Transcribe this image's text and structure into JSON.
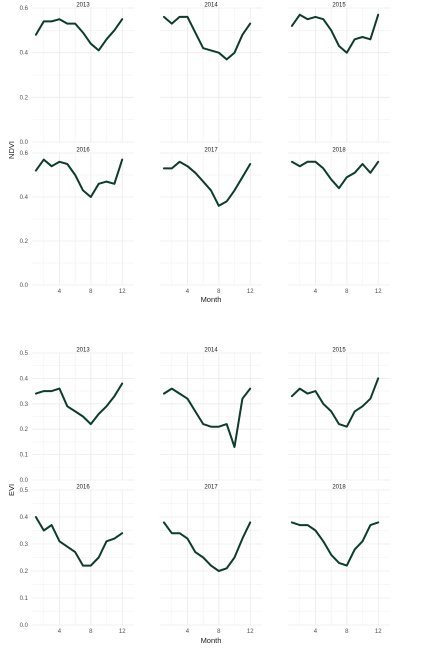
{
  "line_color": "#0b3d2a",
  "grid_color": "#ebebeb",
  "chart_data": [
    {
      "type": "line",
      "ylabel": "NDVI",
      "xlabel": "Month",
      "ylim": [
        0,
        0.6
      ],
      "yticks": [
        "0.0",
        "0.2",
        "0.4",
        "0.6"
      ],
      "xlim": [
        0.5,
        13.5
      ],
      "xticks": [
        "4",
        "8",
        "12"
      ],
      "grid": true,
      "panels": [
        {
          "title": "2013",
          "x": [
            1,
            2,
            3,
            4,
            5,
            6,
            7,
            8,
            9,
            10,
            11,
            12
          ],
          "y": [
            0.48,
            0.54,
            0.54,
            0.55,
            0.53,
            0.53,
            0.49,
            0.44,
            0.41,
            0.46,
            0.5,
            0.55
          ]
        },
        {
          "title": "2014",
          "x": [
            1,
            2,
            3,
            4,
            5,
            6,
            7,
            8,
            9,
            10,
            11,
            12
          ],
          "y": [
            0.56,
            0.53,
            0.56,
            0.56,
            0.49,
            0.42,
            0.41,
            0.4,
            0.37,
            0.4,
            0.48,
            0.53
          ]
        },
        {
          "title": "2015",
          "x": [
            1,
            2,
            3,
            4,
            5,
            6,
            7,
            8,
            9,
            10,
            11,
            12
          ],
          "y": [
            0.52,
            0.57,
            0.55,
            0.56,
            0.55,
            0.5,
            0.43,
            0.4,
            0.46,
            0.47,
            0.46,
            0.57
          ]
        },
        {
          "title": "2016",
          "x": [
            1,
            2,
            3,
            4,
            5,
            6,
            7,
            8,
            9,
            10,
            11,
            12
          ],
          "y": [
            0.52,
            0.57,
            0.54,
            0.56,
            0.55,
            0.5,
            0.43,
            0.4,
            0.46,
            0.47,
            0.46,
            0.57
          ]
        },
        {
          "title": "2017",
          "x": [
            1,
            2,
            3,
            4,
            5,
            6,
            7,
            8,
            9,
            10,
            11,
            12
          ],
          "y": [
            0.53,
            0.53,
            0.56,
            0.54,
            0.51,
            0.47,
            0.43,
            0.36,
            0.38,
            0.43,
            0.49,
            0.55
          ]
        },
        {
          "title": "2018",
          "x": [
            1,
            2,
            3,
            4,
            5,
            6,
            7,
            8,
            9,
            10,
            11,
            12
          ],
          "y": [
            0.56,
            0.54,
            0.56,
            0.56,
            0.53,
            0.48,
            0.44,
            0.49,
            0.51,
            0.55,
            0.51,
            0.56
          ]
        }
      ]
    },
    {
      "type": "line",
      "ylabel": "EVI",
      "xlabel": "Month",
      "ylim": [
        0,
        0.5
      ],
      "yticks": [
        "0.0",
        "0.1",
        "0.2",
        "0.3",
        "0.4",
        "0.5"
      ],
      "xlim": [
        0.5,
        13.5
      ],
      "xticks": [
        "4",
        "8",
        "12"
      ],
      "grid": true,
      "panels": [
        {
          "title": "2013",
          "x": [
            1,
            2,
            3,
            4,
            5,
            6,
            7,
            8,
            9,
            10,
            11,
            12
          ],
          "y": [
            0.34,
            0.35,
            0.35,
            0.36,
            0.29,
            0.27,
            0.25,
            0.22,
            0.26,
            0.29,
            0.33,
            0.38
          ]
        },
        {
          "title": "2014",
          "x": [
            1,
            2,
            3,
            4,
            5,
            6,
            7,
            8,
            9,
            10,
            11,
            12
          ],
          "y": [
            0.34,
            0.36,
            0.34,
            0.32,
            0.27,
            0.22,
            0.21,
            0.21,
            0.22,
            0.13,
            0.32,
            0.36
          ]
        },
        {
          "title": "2015",
          "x": [
            1,
            2,
            3,
            4,
            5,
            6,
            7,
            8,
            9,
            10,
            11,
            12
          ],
          "y": [
            0.33,
            0.36,
            0.34,
            0.35,
            0.3,
            0.27,
            0.22,
            0.21,
            0.27,
            0.29,
            0.32,
            0.4
          ]
        },
        {
          "title": "2016",
          "x": [
            1,
            2,
            3,
            4,
            5,
            6,
            7,
            8,
            9,
            10,
            11,
            12
          ],
          "y": [
            0.4,
            0.35,
            0.37,
            0.31,
            0.29,
            0.27,
            0.22,
            0.22,
            0.25,
            0.31,
            0.32,
            0.34
          ]
        },
        {
          "title": "2017",
          "x": [
            1,
            2,
            3,
            4,
            5,
            6,
            7,
            8,
            9,
            10,
            11,
            12
          ],
          "y": [
            0.38,
            0.34,
            0.34,
            0.32,
            0.27,
            0.25,
            0.22,
            0.2,
            0.21,
            0.25,
            0.32,
            0.38
          ]
        },
        {
          "title": "2018",
          "x": [
            1,
            2,
            3,
            4,
            5,
            6,
            7,
            8,
            9,
            10,
            11,
            12
          ],
          "y": [
            0.38,
            0.37,
            0.37,
            0.35,
            0.31,
            0.26,
            0.23,
            0.22,
            0.28,
            0.31,
            0.37,
            0.38
          ]
        }
      ]
    }
  ]
}
